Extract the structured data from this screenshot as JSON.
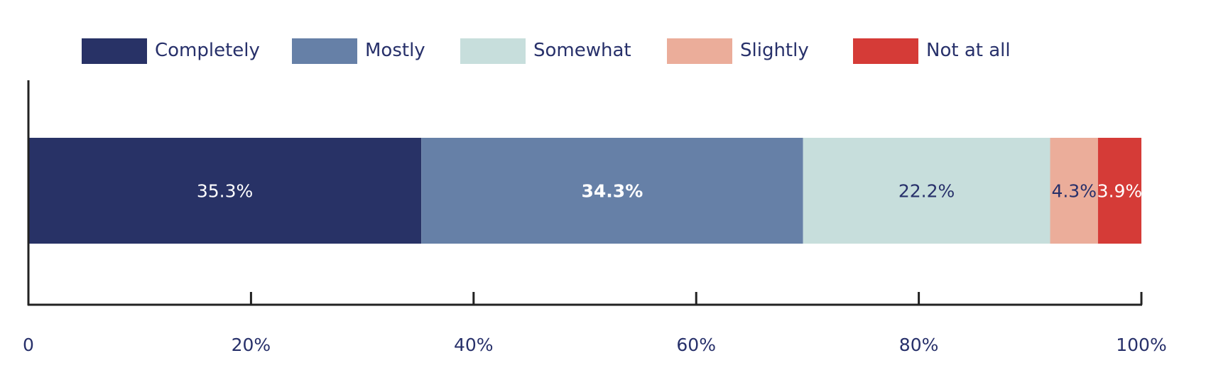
{
  "chart_data": {
    "type": "bar",
    "orientation": "horizontal",
    "stacked": true,
    "categories": [
      ""
    ],
    "series": [
      {
        "name": "Completely",
        "values": [
          35.3
        ],
        "label": "35.3%",
        "color": "#283266",
        "label_color": "#ffffff",
        "label_bold": false
      },
      {
        "name": "Mostly",
        "values": [
          34.3
        ],
        "label": "34.3%",
        "color": "#6680a7",
        "label_color": "#ffffff",
        "label_bold": true
      },
      {
        "name": "Somewhat",
        "values": [
          22.2
        ],
        "label": "22.2%",
        "color": "#c7dedc",
        "label_color": "#27306a",
        "label_bold": false
      },
      {
        "name": "Slightly",
        "values": [
          4.3
        ],
        "label": "4.3%",
        "color": "#ebad9a",
        "label_color": "#27306a",
        "label_bold": false
      },
      {
        "name": "Not at all",
        "values": [
          3.9
        ],
        "label": "3.9%",
        "color": "#d53b37",
        "label_color": "#ffffff",
        "label_bold": false
      }
    ],
    "xlim": [
      0,
      100
    ],
    "xticks": [
      0,
      20,
      40,
      60,
      80,
      100
    ],
    "xtick_labels": [
      "0",
      "20%",
      "40%",
      "60%",
      "80%",
      "100%"
    ],
    "legend_position": "top",
    "grid": false,
    "text_color": "#27306a",
    "axis_color": "#222222"
  }
}
